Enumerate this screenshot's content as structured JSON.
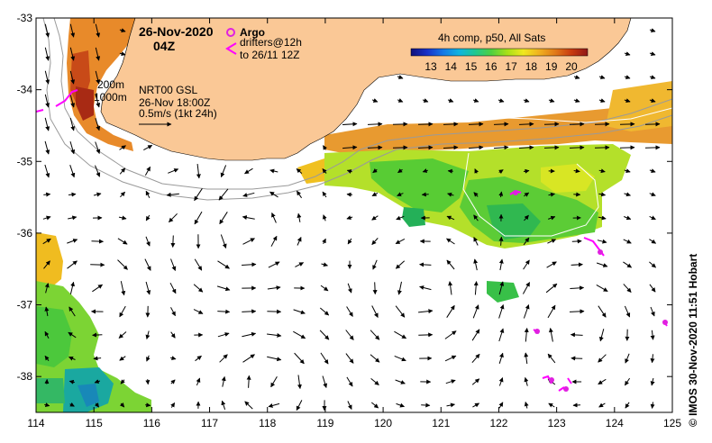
{
  "map": {
    "date": "26-Nov-2020",
    "time": "04Z",
    "legend": {
      "argo": "Argo",
      "drifters_line1": "drifters@12h",
      "drifters_line2": "to 26/11 12Z",
      "argo_color": "#e020e0",
      "drifter_color": "#ff00ff"
    },
    "depth_contours": [
      "200m",
      "1000m"
    ],
    "product": {
      "name": "NRT00 GSL",
      "datetime": "26-Nov 18:00Z",
      "scale": "0.5m/s (1kt 24h)"
    },
    "colorbar": {
      "title": "4h comp, p50, All Sats",
      "ticks": [
        "13",
        "14",
        "15",
        "16",
        "17",
        "18",
        "19",
        "20"
      ],
      "colors": [
        "#10107a",
        "#1830c8",
        "#1478e6",
        "#10b4e0",
        "#20c890",
        "#50d040",
        "#a8e018",
        "#f0e820",
        "#f0b020",
        "#e07818",
        "#c83a10",
        "#901818"
      ]
    },
    "x_ticks": [
      "114",
      "115",
      "116",
      "117",
      "118",
      "119",
      "120",
      "121",
      "122",
      "123",
      "124",
      "125"
    ],
    "y_ticks": [
      "-33",
      "-34",
      "-35",
      "-36",
      "-37",
      "-38"
    ],
    "x_range": [
      114,
      125
    ],
    "y_range": [
      -33,
      -38.5
    ],
    "land_color": "#fac896",
    "credit": "© IMOS 30-Nov-2020 11:51 Hobart"
  }
}
